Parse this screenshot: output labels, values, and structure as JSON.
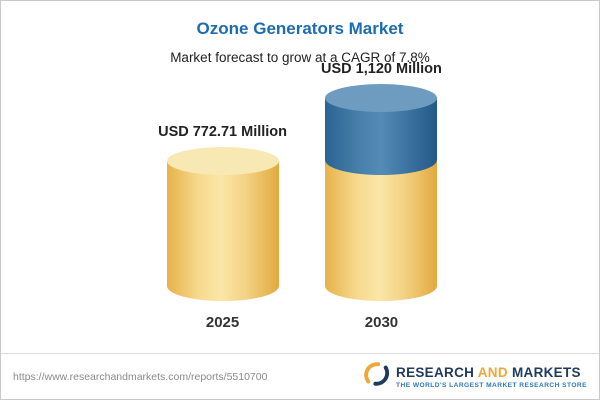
{
  "chart_data": {
    "type": "bar",
    "bar_style": "cylinder",
    "title": "Ozone Generators Market",
    "subtitle": "Market forecast to grow at a CAGR of 7.8%",
    "categories": [
      "2025",
      "2030"
    ],
    "values": [
      772.71,
      1120
    ],
    "value_labels": [
      "USD 772.71 Million",
      "USD 1,120 Million"
    ],
    "unit": "USD Million",
    "cagr_pct": 7.8,
    "grid": false,
    "legend": "none",
    "colors": {
      "title_blue": "#1b6cb3",
      "bar_yellow": "#f3d385",
      "bar_growth_blue": "#3c74a3"
    }
  },
  "footer": {
    "url": "https://www.researchandmarkets.com/reports/5510700",
    "logo": {
      "part1": "RESEARCH",
      "part2": "AND",
      "part3": "MARKETS",
      "tagline": "THE WORLD'S LARGEST MARKET RESEARCH STORE"
    }
  }
}
